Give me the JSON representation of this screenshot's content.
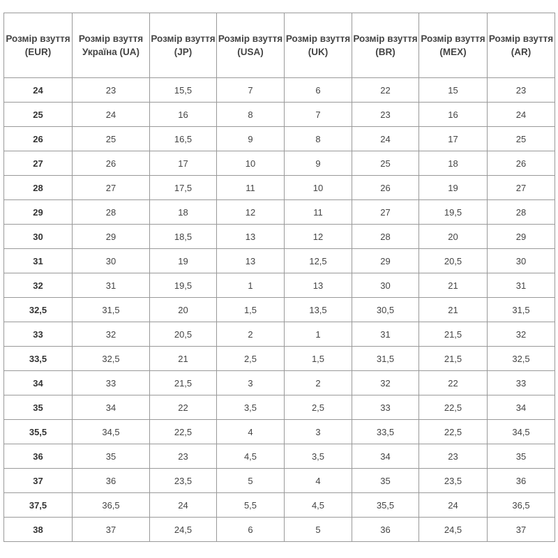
{
  "headers": [
    "Розмір взуття (EUR)",
    "Розмір взуття Україна (UA)",
    "Розмір взуття (JP)",
    "Розмір взуття (USA)",
    "Розмір взуття (UK)",
    "Розмір взуття (BR)",
    "Розмір взуття (MEX)",
    "Розмір взуття (AR)"
  ],
  "rows": [
    [
      "24",
      "23",
      "15,5",
      "7",
      "6",
      "22",
      "15",
      "23"
    ],
    [
      "25",
      "24",
      "16",
      "8",
      "7",
      "23",
      "16",
      "24"
    ],
    [
      "26",
      "25",
      "16,5",
      "9",
      "8",
      "24",
      "17",
      "25"
    ],
    [
      "27",
      "26",
      "17",
      "10",
      "9",
      "25",
      "18",
      "26"
    ],
    [
      "28",
      "27",
      "17,5",
      "11",
      "10",
      "26",
      "19",
      "27"
    ],
    [
      "29",
      "28",
      "18",
      "12",
      "11",
      "27",
      "19,5",
      "28"
    ],
    [
      "30",
      "29",
      "18,5",
      "13",
      "12",
      "28",
      "20",
      "29"
    ],
    [
      "31",
      "30",
      "19",
      "13",
      "12,5",
      "29",
      "20,5",
      "30"
    ],
    [
      "32",
      "31",
      "19,5",
      "1",
      "13",
      "30",
      "21",
      "31"
    ],
    [
      "32,5",
      "31,5",
      "20",
      "1,5",
      "13,5",
      "30,5",
      "21",
      "31,5"
    ],
    [
      "33",
      "32",
      "20,5",
      "2",
      "1",
      "31",
      "21,5",
      "32"
    ],
    [
      "33,5",
      "32,5",
      "21",
      "2,5",
      "1,5",
      "31,5",
      "21,5",
      "32,5"
    ],
    [
      "34",
      "33",
      "21,5",
      "3",
      "2",
      "32",
      "22",
      "33"
    ],
    [
      "35",
      "34",
      "22",
      "3,5",
      "2,5",
      "33",
      "22,5",
      "34"
    ],
    [
      "35,5",
      "34,5",
      "22,5",
      "4",
      "3",
      "33,5",
      "22,5",
      "34,5"
    ],
    [
      "36",
      "35",
      "23",
      "4,5",
      "3,5",
      "34",
      "23",
      "35"
    ],
    [
      "37",
      "36",
      "23,5",
      "5",
      "4",
      "35",
      "23,5",
      "36"
    ],
    [
      "37,5",
      "36,5",
      "24",
      "5,5",
      "4,5",
      "35,5",
      "24",
      "36,5"
    ],
    [
      "38",
      "37",
      "24,5",
      "6",
      "5",
      "36",
      "24,5",
      "37"
    ]
  ]
}
